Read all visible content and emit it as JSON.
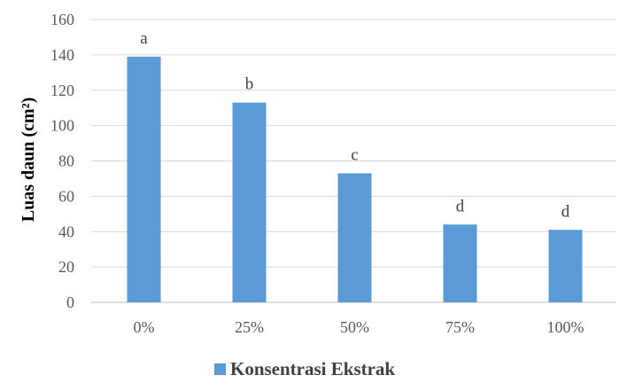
{
  "chart_data": {
    "type": "bar",
    "categories": [
      "0%",
      "25%",
      "50%",
      "75%",
      "100%"
    ],
    "series": [
      {
        "name": "Konsentrasi Ekstrak",
        "values": [
          139,
          113,
          73,
          44,
          41
        ],
        "color": "#5b9bd5"
      }
    ],
    "data_labels": [
      "a",
      "b",
      "c",
      "d",
      "d"
    ],
    "title": "",
    "xlabel": "",
    "ylabel": "Luas daun (cm²)",
    "ylim": [
      0,
      160
    ],
    "yticks": [
      0,
      20,
      40,
      60,
      80,
      100,
      120,
      140,
      160
    ],
    "grid": true,
    "legend": "bottom",
    "gridline_color": "#d9d9d9",
    "axis_color": "#bfbfbf"
  }
}
